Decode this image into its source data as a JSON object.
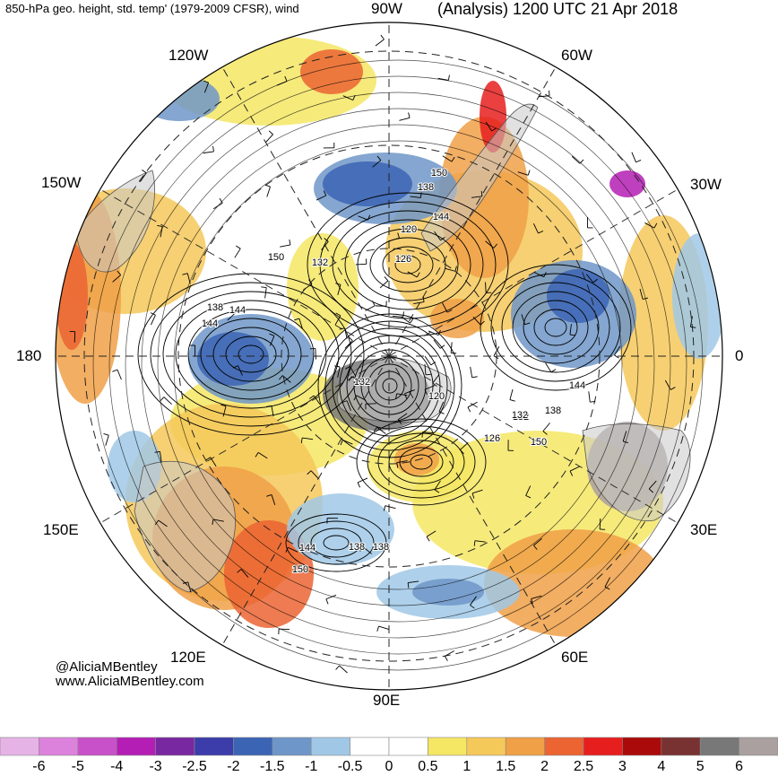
{
  "header": {
    "left_title": "850-hPa geo. height, std. temp' (1979-2009 CFSR), wind",
    "right_title": "(Analysis) 1200 UTC 21 Apr 2018"
  },
  "longitude_labels": {
    "w90": "90W",
    "w60": "60W",
    "w30": "30W",
    "zero": "0",
    "e30": "30E",
    "e60": "60E",
    "e90": "90E",
    "e120": "120E",
    "e150": "150E",
    "dateline": "180",
    "w150": "150W",
    "w120": "120W"
  },
  "contour_labels": [
    "138",
    "144",
    "150",
    "120",
    "126",
    "132",
    "144",
    "138",
    "132",
    "120",
    "132",
    "138",
    "144",
    "150",
    "126",
    "144",
    "138",
    "150",
    "132",
    "138",
    "144",
    "150"
  ],
  "credit": {
    "handle": "@AliciaMBentley",
    "website": "www.AliciaMBentley.com"
  },
  "colorbar": {
    "labels": [
      "-6",
      "-5",
      "-4",
      "-3",
      "-2.5",
      "-2",
      "-1.5",
      "-1",
      "-0.5",
      "0",
      "0.5",
      "1",
      "1.5",
      "2",
      "2.5",
      "3",
      "4",
      "5",
      "6"
    ],
    "colors": [
      "#e6b3e6",
      "#dc82dc",
      "#c850c8",
      "#b41eb4",
      "#7828a0",
      "#3c3caa",
      "#3c64b4",
      "#6e96c8",
      "#a0c8e6",
      "#ffffff",
      "#ffffff",
      "#f5e664",
      "#f5c85a",
      "#f0a046",
      "#eb6432",
      "#e61e1e",
      "#aa0a0a",
      "#783232",
      "#787878",
      "#aaa0a0"
    ]
  }
}
